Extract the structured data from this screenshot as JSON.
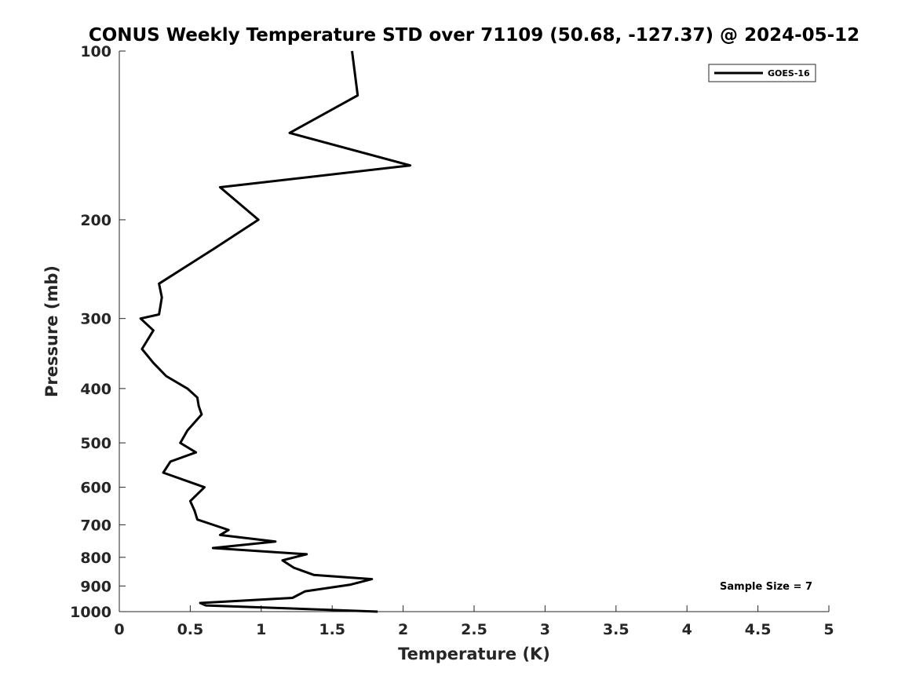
{
  "chart_data": {
    "type": "line",
    "title": "CONUS Weekly Temperature STD over 71109 (50.68, -127.37) @ 2024-05-12",
    "xlabel": "Temperature (K)",
    "ylabel": "Pressure (mb)",
    "xlim": [
      0,
      5
    ],
    "ylim": [
      100,
      1000
    ],
    "y_scale": "log",
    "y_reversed": true,
    "grid": false,
    "x_ticks": [
      0,
      0.5,
      1,
      1.5,
      2,
      2.5,
      3,
      3.5,
      4,
      4.5,
      5
    ],
    "x_tick_labels": [
      "0",
      "0.5",
      "1",
      "1.5",
      "2",
      "2.5",
      "3",
      "3.5",
      "4",
      "4.5",
      "5"
    ],
    "y_ticks": [
      100,
      200,
      300,
      400,
      500,
      600,
      700,
      800,
      900,
      1000
    ],
    "y_tick_labels": [
      "100",
      "200",
      "300",
      "400",
      "500",
      "600",
      "700",
      "800",
      "900",
      "1000"
    ],
    "legend_position": "top-right",
    "series": [
      {
        "name": "GOES-16",
        "color": "#000000",
        "x": [
          1.64,
          1.68,
          1.2,
          2.05,
          0.71,
          0.98,
          0.67,
          0.28,
          0.3,
          0.29,
          0.28,
          0.15,
          0.24,
          0.16,
          0.24,
          0.33,
          0.48,
          0.55,
          0.56,
          0.58,
          0.48,
          0.43,
          0.54,
          0.36,
          0.31,
          0.6,
          0.5,
          0.53,
          0.55,
          0.77,
          0.71,
          1.1,
          0.66,
          1.32,
          1.15,
          1.23,
          1.37,
          1.78,
          1.63,
          1.31,
          1.22,
          0.57,
          0.61,
          1.82
        ],
        "y": [
          100,
          120,
          140,
          160,
          175,
          200,
          225,
          260,
          275,
          285,
          295,
          300,
          315,
          340,
          360,
          380,
          400,
          415,
          430,
          445,
          475,
          500,
          520,
          540,
          565,
          600,
          635,
          660,
          685,
          715,
          730,
          750,
          770,
          790,
          810,
          835,
          860,
          875,
          895,
          920,
          945,
          965,
          975,
          1000
        ]
      }
    ],
    "annotations": [
      "Sample Size = 7"
    ]
  }
}
